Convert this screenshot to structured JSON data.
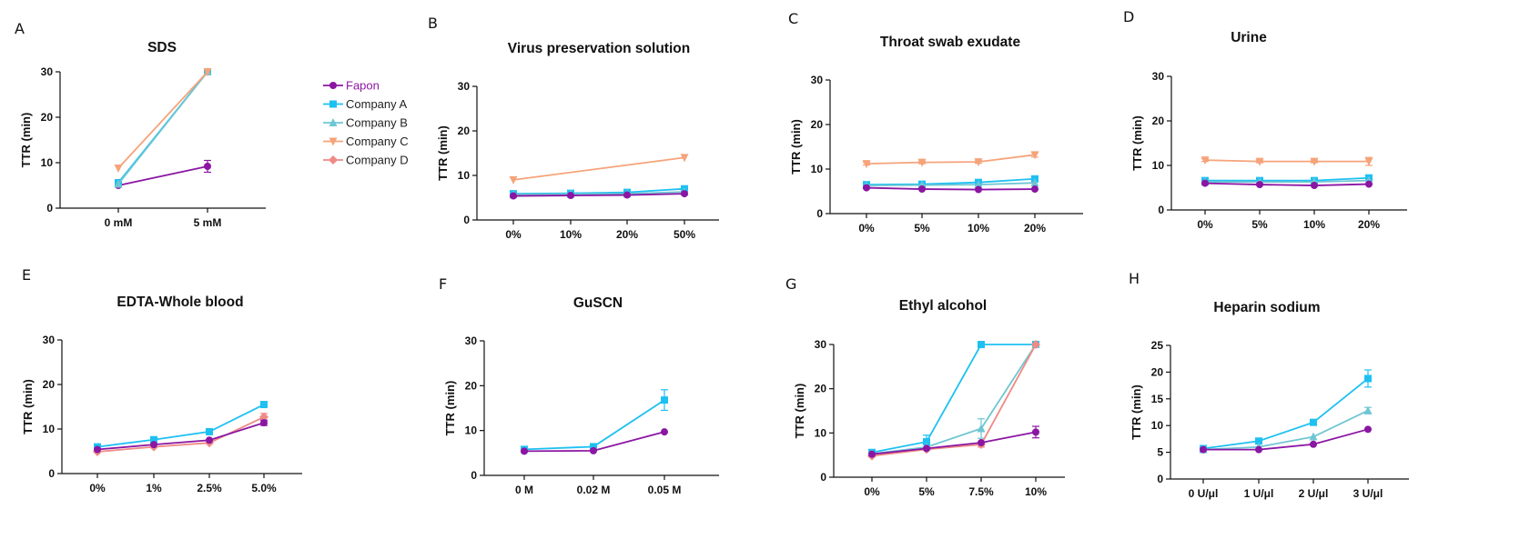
{
  "legend": [
    {
      "name": "Fapon",
      "color": "#8b16a3",
      "marker": "circle"
    },
    {
      "name": "Company A",
      "color": "#1ec0f2",
      "marker": "square"
    },
    {
      "name": "Company B",
      "color": "#6fc6d3",
      "marker": "triangle"
    },
    {
      "name": "Company C",
      "color": "#f6a37a",
      "marker": "triangle-down"
    },
    {
      "name": "Company D",
      "color": "#ef8a85",
      "marker": "diamond"
    }
  ],
  "colors": {
    "Fapon": "#8b16a3",
    "Company A": "#1ec0f2",
    "Company B": "#6fc6d3",
    "Company C": "#f6a37a",
    "Company D": "#ef8a85"
  },
  "chart_data": [
    {
      "letter": "A",
      "type": "line",
      "title": "SDS",
      "ylabel": "TTR (min)",
      "categories": [
        "0 mM",
        "5 mM"
      ],
      "ylim": [
        0,
        30
      ],
      "yticks": [
        0,
        10,
        20,
        30
      ],
      "series": [
        {
          "name": "Fapon",
          "values": [
            5.0,
            9.2
          ],
          "errors": [
            0,
            1.3
          ]
        },
        {
          "name": "Company A",
          "values": [
            5.6,
            30
          ],
          "errors": [
            0,
            0
          ]
        },
        {
          "name": "Company B",
          "values": [
            5.3,
            30
          ],
          "errors": [
            0,
            0
          ]
        },
        {
          "name": "Company C",
          "values": [
            8.8,
            30
          ],
          "errors": [
            0,
            0
          ]
        }
      ]
    },
    {
      "letter": "B",
      "type": "line",
      "title": "Virus preservation solution",
      "ylabel": "TTR (min)",
      "categories": [
        "0%",
        "10%",
        "20%",
        "50%"
      ],
      "ylim": [
        0,
        30
      ],
      "yticks": [
        0,
        10,
        20,
        30
      ],
      "series": [
        {
          "name": "Company C",
          "values": [
            9.0,
            null,
            null,
            14.0
          ],
          "errors": [
            0,
            0,
            0,
            0
          ]
        },
        {
          "name": "Company A",
          "values": [
            5.9,
            6.0,
            6.2,
            7.0
          ],
          "errors": [
            0,
            0,
            0,
            0
          ]
        },
        {
          "name": "Company B",
          "values": [
            5.7,
            5.8,
            5.9,
            6.3
          ],
          "errors": [
            0,
            0,
            0,
            0
          ]
        },
        {
          "name": "Fapon",
          "values": [
            5.4,
            5.5,
            5.6,
            5.9
          ],
          "errors": [
            0,
            0,
            0,
            0
          ]
        }
      ]
    },
    {
      "letter": "C",
      "type": "line",
      "title": "Throat swab exudate",
      "ylabel": "TTR (min)",
      "categories": [
        "0%",
        "5%",
        "10%",
        "20%"
      ],
      "ylim": [
        0,
        30
      ],
      "yticks": [
        0,
        10,
        20,
        30
      ],
      "series": [
        {
          "name": "Company C",
          "values": [
            11.2,
            11.5,
            11.6,
            13.2
          ],
          "errors": [
            0.3,
            0.3,
            0.3,
            0.5
          ]
        },
        {
          "name": "Company A",
          "values": [
            6.5,
            6.6,
            7.0,
            7.8
          ],
          "errors": [
            0,
            0,
            0,
            0.3
          ]
        },
        {
          "name": "Company B",
          "values": [
            6.3,
            6.4,
            6.5,
            6.9
          ],
          "errors": [
            0,
            0,
            0,
            0
          ]
        },
        {
          "name": "Fapon",
          "values": [
            5.8,
            5.5,
            5.4,
            5.5
          ],
          "errors": [
            0,
            0,
            0,
            0
          ]
        }
      ]
    },
    {
      "letter": "D",
      "type": "line",
      "title": "Urine",
      "ylabel": "TTR (min)",
      "categories": [
        "0%",
        "5%",
        "10%",
        "20%"
      ],
      "ylim": [
        0,
        30
      ],
      "yticks": [
        0,
        10,
        20,
        30
      ],
      "series": [
        {
          "name": "Company C",
          "values": [
            11.2,
            10.9,
            10.9,
            10.9
          ],
          "errors": [
            0.3,
            0.3,
            0.3,
            0.9
          ]
        },
        {
          "name": "Company A",
          "values": [
            6.6,
            6.6,
            6.6,
            7.2
          ],
          "errors": [
            0,
            0,
            0,
            0
          ]
        },
        {
          "name": "Company B",
          "values": [
            6.3,
            6.3,
            6.3,
            6.6
          ],
          "errors": [
            0,
            0,
            0,
            0
          ]
        },
        {
          "name": "Fapon",
          "values": [
            6.0,
            5.7,
            5.5,
            5.8
          ],
          "errors": [
            0,
            0,
            0,
            0
          ]
        }
      ]
    },
    {
      "letter": "E",
      "type": "line",
      "title": "EDTA-Whole blood",
      "ylabel": "TTR (min)",
      "categories": [
        "0%",
        "1%",
        "2.5%",
        "5.0%"
      ],
      "ylim": [
        0,
        30
      ],
      "yticks": [
        0,
        10,
        20,
        30
      ],
      "series": [
        {
          "name": "Company A",
          "values": [
            6.0,
            7.6,
            9.4,
            15.5
          ],
          "errors": [
            0,
            0,
            0,
            0
          ]
        },
        {
          "name": "Company D",
          "values": [
            4.9,
            6.0,
            6.9,
            12.7
          ],
          "errors": [
            0,
            0,
            0,
            0.8
          ]
        },
        {
          "name": "Fapon",
          "values": [
            5.4,
            6.5,
            7.5,
            11.4
          ],
          "errors": [
            0,
            0,
            0,
            0.6
          ]
        }
      ]
    },
    {
      "letter": "F",
      "type": "line",
      "title": "GuSCN",
      "ylabel": "TTR (min)",
      "categories": [
        "0 M",
        "0.02 M",
        "0.05 M"
      ],
      "ylim": [
        0,
        30
      ],
      "yticks": [
        0,
        10,
        20,
        30
      ],
      "series": [
        {
          "name": "Company A",
          "values": [
            5.8,
            6.4,
            16.8
          ],
          "errors": [
            0,
            0,
            2.3
          ]
        },
        {
          "name": "Fapon",
          "values": [
            5.4,
            5.5,
            9.7
          ],
          "errors": [
            0,
            0,
            0
          ]
        }
      ]
    },
    {
      "letter": "G",
      "type": "line",
      "title": "Ethyl alcohol",
      "ylabel": "TTR (min)",
      "categories": [
        "0%",
        "5%",
        "7.5%",
        "10%"
      ],
      "ylim": [
        0,
        30
      ],
      "yticks": [
        0,
        10,
        20,
        30
      ],
      "series": [
        {
          "name": "Company A",
          "values": [
            5.6,
            8.0,
            30,
            30
          ],
          "errors": [
            0,
            1.5,
            0,
            0
          ]
        },
        {
          "name": "Company B",
          "values": [
            5.3,
            6.8,
            11.0,
            30
          ],
          "errors": [
            0,
            0,
            2.2,
            0
          ]
        },
        {
          "name": "Company D",
          "values": [
            4.8,
            6.3,
            7.4,
            30
          ],
          "errors": [
            0,
            0,
            0.6,
            0
          ]
        },
        {
          "name": "Fapon",
          "values": [
            5.2,
            6.5,
            7.8,
            10.2
          ],
          "errors": [
            0,
            0,
            0,
            1.3
          ]
        }
      ]
    },
    {
      "letter": "H",
      "type": "line",
      "title": "Heparin sodium",
      "ylabel": "TTR (min)",
      "categories": [
        "0 U/μl",
        "1 U/μl",
        "2 U/μl",
        "3 U/μl"
      ],
      "ylim": [
        0,
        25
      ],
      "yticks": [
        0,
        5,
        10,
        15,
        20,
        25
      ],
      "series": [
        {
          "name": "Company A",
          "values": [
            5.7,
            7.1,
            10.6,
            18.8
          ],
          "errors": [
            0,
            0,
            0,
            1.6
          ]
        },
        {
          "name": "Company B",
          "values": [
            5.5,
            6.0,
            7.9,
            12.8
          ],
          "errors": [
            0,
            0,
            0,
            0.6
          ]
        },
        {
          "name": "Fapon",
          "values": [
            5.5,
            5.5,
            6.5,
            9.3
          ],
          "errors": [
            0,
            0,
            0,
            0
          ]
        }
      ]
    }
  ]
}
